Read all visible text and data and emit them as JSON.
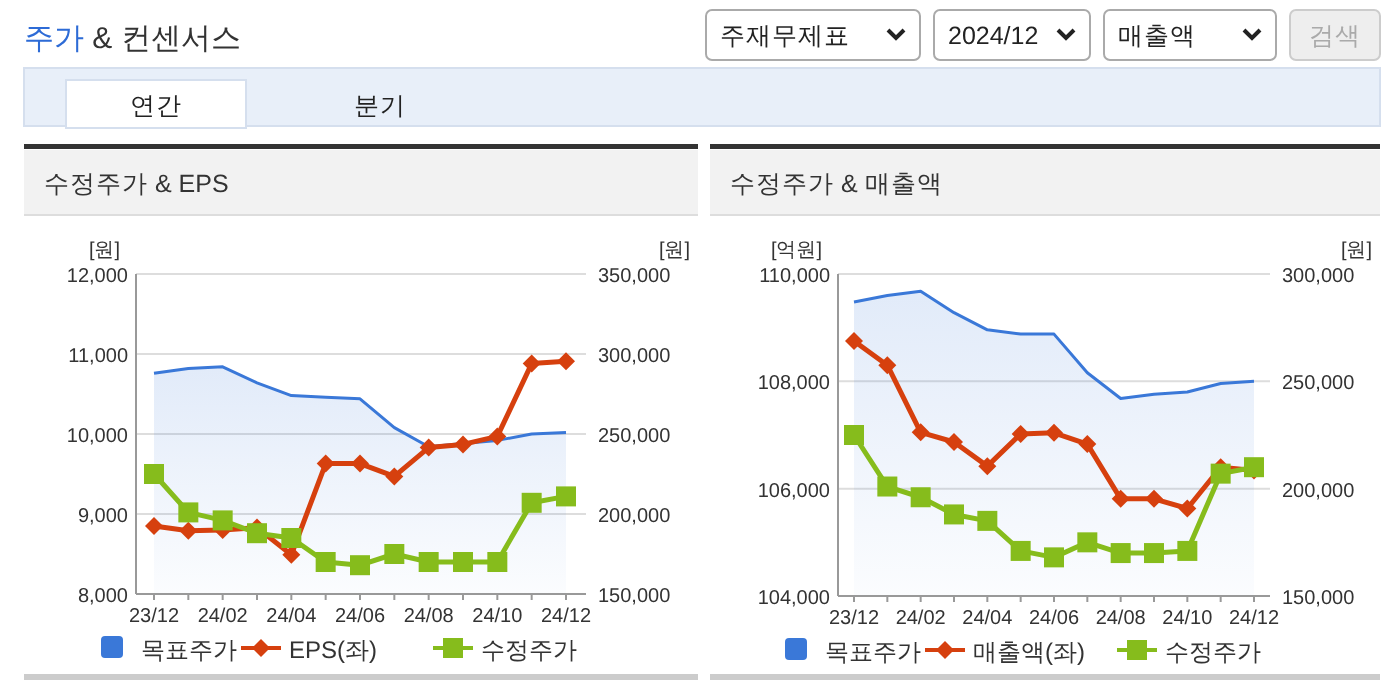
{
  "chart_data": [
    {
      "type": "other",
      "title": "주가 & 컨센서스",
      "annotations": [
        "주재무제표",
        "2024/12",
        "매출액",
        "검색",
        "연간",
        "분기"
      ]
    },
    {
      "type": "line",
      "title": "수정주가 & EPS",
      "ylabel": "[원]",
      "y2label": "[원]",
      "categories": [
        "23/12",
        null,
        "24/02",
        null,
        "24/04",
        null,
        "24/06",
        null,
        "24/08",
        null,
        "24/10",
        null,
        "24/12"
      ],
      "ylim": [
        8000,
        12000
      ],
      "yticks": [
        {
          "value": 8000,
          "label": "8,000"
        },
        {
          "value": 9000,
          "label": "9,000"
        },
        {
          "value": 10000,
          "label": "10,000"
        },
        {
          "value": 11000,
          "label": "11,000"
        },
        {
          "value": 12000,
          "label": "12,000"
        }
      ],
      "y2lim": [
        150000,
        350000
      ],
      "y2ticks": [
        {
          "value": 150000,
          "label": "150,000"
        },
        {
          "value": 200000,
          "label": "200,000"
        },
        {
          "value": 250000,
          "label": "250,000"
        },
        {
          "value": 300000,
          "label": "300,000"
        },
        {
          "value": 350000,
          "label": "350,000"
        }
      ],
      "grid": "y",
      "legend": "bottom",
      "series": [
        {
          "name": "목표주가",
          "type": "area",
          "axis": "y2",
          "color": "#3a78d8",
          "values": [
            288000,
            291000,
            292000,
            282000,
            274000,
            273000,
            272000,
            254000,
            242000,
            244000,
            246000,
            250000,
            251000
          ]
        },
        {
          "name": "EPS(좌)",
          "type": "line",
          "marker": "diamond",
          "color": "#d6400e",
          "values": [
            8850,
            8790,
            8800,
            8830,
            8490,
            9630,
            9630,
            9470,
            9830,
            9870,
            9970,
            10880,
            10910
          ]
        },
        {
          "name": "수정주가",
          "type": "line",
          "axis": "y2",
          "marker": "square",
          "color": "#86bc1c",
          "values": [
            225000,
            201000,
            196000,
            188000,
            185000,
            170000,
            168000,
            175000,
            170000,
            170000,
            170000,
            207000,
            211000
          ]
        }
      ]
    },
    {
      "type": "line",
      "title": "수정주가 & 매출액",
      "ylabel": "[억원]",
      "y2label": "[원]",
      "categories": [
        "23/12",
        null,
        "24/02",
        null,
        "24/04",
        null,
        "24/06",
        null,
        "24/08",
        null,
        "24/10",
        null,
        "24/12"
      ],
      "ylim": [
        104000,
        110000
      ],
      "yticks": [
        {
          "value": 104000,
          "label": "104,000"
        },
        {
          "value": 106000,
          "label": "106,000"
        },
        {
          "value": 108000,
          "label": "108,000"
        },
        {
          "value": 110000,
          "label": "110,000"
        }
      ],
      "y2lim": [
        150000,
        300000
      ],
      "y2ticks": [
        {
          "value": 150000,
          "label": "150,000"
        },
        {
          "value": 200000,
          "label": "200,000"
        },
        {
          "value": 250000,
          "label": "250,000"
        },
        {
          "value": 300000,
          "label": "300,000"
        }
      ],
      "grid": "y",
      "legend": "bottom",
      "series": [
        {
          "name": "목표주가",
          "type": "area",
          "axis": "y2",
          "color": "#3a78d8",
          "values": [
            287000,
            290000,
            292000,
            282000,
            274000,
            272000,
            272000,
            254000,
            242000,
            244000,
            245000,
            249000,
            250000
          ]
        },
        {
          "name": "매출액(좌)",
          "type": "line",
          "marker": "diamond",
          "color": "#d6400e",
          "values": [
            108750,
            108300,
            107050,
            106870,
            106420,
            107020,
            107040,
            106830,
            105810,
            105810,
            105630,
            106400,
            106340
          ]
        },
        {
          "name": "수정주가",
          "type": "line",
          "axis": "y2",
          "marker": "square",
          "color": "#86bc1c",
          "values": [
            225000,
            201000,
            196000,
            188000,
            185000,
            171000,
            168000,
            175000,
            170000,
            170000,
            171000,
            207000,
            210000
          ]
        }
      ]
    }
  ]
}
